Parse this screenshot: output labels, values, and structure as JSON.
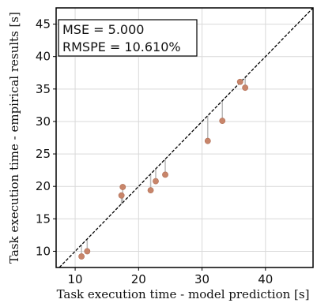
{
  "chart_data": {
    "type": "scatter",
    "xlabel": "Task execution time - model prediction [s]",
    "ylabel": "Task execution time - empirical results [s]",
    "xlim": [
      7,
      47.5
    ],
    "ylim": [
      7.5,
      47.5
    ],
    "xticks": [
      10,
      20,
      30,
      40
    ],
    "yticks": [
      10,
      15,
      20,
      25,
      30,
      35,
      40,
      45
    ],
    "grid": true,
    "reference_line": "y = x",
    "annotations": [
      "MSE = 5.000",
      "RMSPE = 10.610%"
    ],
    "points": [
      {
        "x": 11.0,
        "y": 9.2
      },
      {
        "x": 11.9,
        "y": 10.0
      },
      {
        "x": 17.3,
        "y": 18.6
      },
      {
        "x": 17.5,
        "y": 19.9
      },
      {
        "x": 21.9,
        "y": 19.4
      },
      {
        "x": 22.7,
        "y": 20.8
      },
      {
        "x": 24.2,
        "y": 21.8
      },
      {
        "x": 30.9,
        "y": 27.0
      },
      {
        "x": 33.2,
        "y": 30.1
      },
      {
        "x": 36.0,
        "y": 36.1
      },
      {
        "x": 36.8,
        "y": 35.2
      }
    ],
    "colors": {
      "points": "#c8856a",
      "residuals": "#b9b9b9",
      "reference_line": "#000000",
      "grid": "#d9d9d9"
    }
  }
}
